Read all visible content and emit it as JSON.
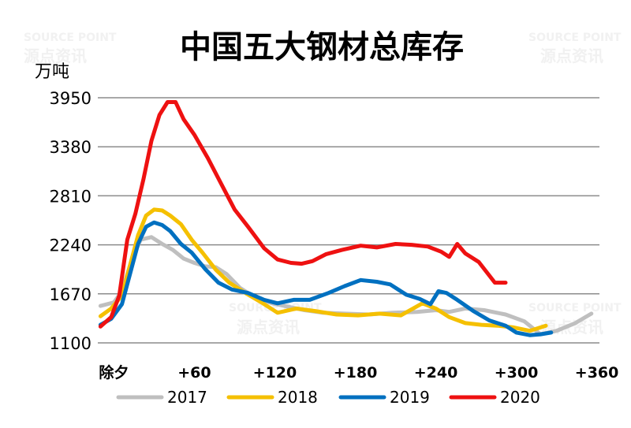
{
  "chart_data": {
    "type": "line",
    "title": "中国五大钢材总库存",
    "ylabel": "万吨",
    "ylim": [
      1100,
      3950
    ],
    "yticks": [
      1100,
      1670,
      2240,
      2810,
      3380,
      3950
    ],
    "xlim": [
      -12,
      362
    ],
    "xticks": [
      {
        "value": 0,
        "label": "除夕"
      },
      {
        "value": 60,
        "label": "+60"
      },
      {
        "value": 120,
        "label": "+120"
      },
      {
        "value": 180,
        "label": "+180"
      },
      {
        "value": 240,
        "label": "+240"
      },
      {
        "value": 300,
        "label": "+300"
      },
      {
        "value": 360,
        "label": "+360"
      }
    ],
    "grid": true,
    "legend_position": "bottom",
    "series": [
      {
        "name": "2017",
        "color": "#bfbfbf",
        "x": [
          -10,
          0,
          6,
          14,
          20,
          28,
          36,
          44,
          52,
          60,
          68,
          76,
          84,
          94,
          106,
          118,
          130,
          142,
          156,
          172,
          190,
          208,
          226,
          240,
          250,
          262,
          276,
          292,
          306,
          318,
          330,
          344,
          356
        ],
        "y": [
          1530,
          1570,
          1700,
          2100,
          2300,
          2330,
          2250,
          2180,
          2080,
          2030,
          1990,
          1980,
          1900,
          1740,
          1620,
          1560,
          1520,
          1480,
          1450,
          1440,
          1430,
          1450,
          1460,
          1480,
          1460,
          1500,
          1480,
          1430,
          1350,
          1200,
          1240,
          1330,
          1440
        ]
      },
      {
        "name": "2018",
        "color": "#f5c000",
        "x": [
          -10,
          -2,
          6,
          12,
          18,
          24,
          30,
          36,
          42,
          50,
          58,
          66,
          76,
          86,
          98,
          110,
          122,
          136,
          150,
          166,
          182,
          198,
          214,
          230,
          240,
          250,
          262,
          274,
          286,
          298,
          310,
          322
        ],
        "y": [
          1410,
          1500,
          1650,
          2000,
          2350,
          2580,
          2650,
          2640,
          2580,
          2480,
          2300,
          2150,
          1950,
          1800,
          1680,
          1570,
          1450,
          1500,
          1470,
          1430,
          1420,
          1440,
          1420,
          1560,
          1500,
          1400,
          1330,
          1310,
          1300,
          1280,
          1240,
          1300
        ]
      },
      {
        "name": "2019",
        "color": "#0070c0",
        "x": [
          -10,
          -2,
          6,
          12,
          18,
          24,
          30,
          36,
          42,
          50,
          58,
          68,
          78,
          88,
          100,
          112,
          122,
          134,
          146,
          160,
          172,
          184,
          196,
          206,
          218,
          228,
          236,
          242,
          248,
          256,
          268,
          280,
          292,
          300,
          310,
          318,
          326
        ],
        "y": [
          1310,
          1380,
          1550,
          1900,
          2250,
          2450,
          2500,
          2470,
          2400,
          2250,
          2150,
          1960,
          1800,
          1720,
          1680,
          1600,
          1560,
          1600,
          1600,
          1680,
          1760,
          1830,
          1810,
          1780,
          1660,
          1610,
          1550,
          1700,
          1680,
          1600,
          1470,
          1360,
          1300,
          1220,
          1190,
          1200,
          1220
        ]
      },
      {
        "name": "2020",
        "color": "#ee1111",
        "x": [
          -10,
          -2,
          4,
          10,
          16,
          22,
          28,
          34,
          40,
          46,
          52,
          60,
          70,
          80,
          90,
          100,
          112,
          122,
          132,
          140,
          148,
          158,
          170,
          184,
          196,
          210,
          222,
          234,
          244,
          250,
          256,
          262,
          272,
          284,
          292
        ],
        "y": [
          1290,
          1400,
          1650,
          2300,
          2600,
          3000,
          3450,
          3750,
          3900,
          3900,
          3700,
          3520,
          3250,
          2950,
          2650,
          2450,
          2200,
          2070,
          2030,
          2020,
          2050,
          2130,
          2180,
          2230,
          2210,
          2250,
          2240,
          2220,
          2160,
          2100,
          2250,
          2140,
          2040,
          1800,
          1800
        ]
      }
    ]
  },
  "watermark": {
    "logo": "ooo",
    "en": "SOURCE POINT",
    "cn": "源点资讯"
  }
}
